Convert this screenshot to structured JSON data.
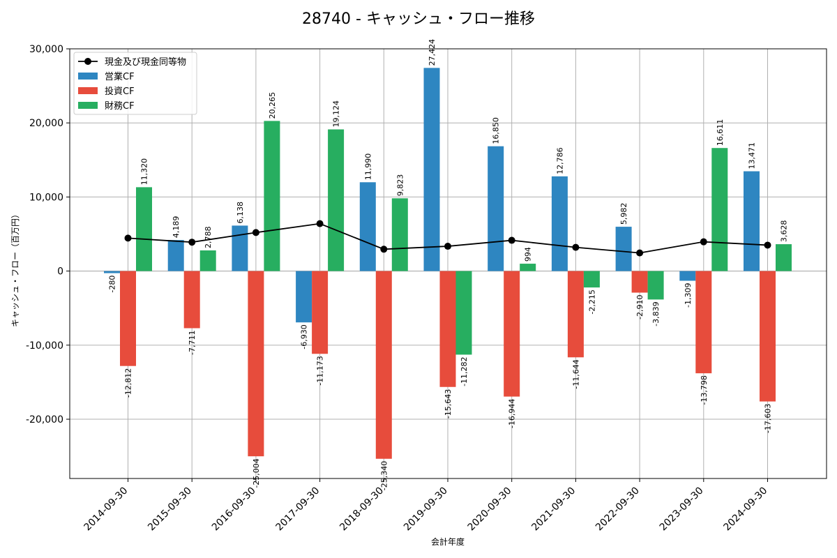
{
  "chart_data": {
    "type": "bar",
    "title": "28740 - キャッシュ・フロー推移",
    "xlabel": "会計年度",
    "ylabel": "キャッシュ・フロー（百万円）",
    "ylim": [
      -28000,
      30000
    ],
    "yticks": [
      -20000,
      -10000,
      0,
      10000,
      20000,
      30000
    ],
    "ytick_labels": [
      "-20,000",
      "-10,000",
      "0",
      "10,000",
      "20,000",
      "30,000"
    ],
    "grid": true,
    "legend_position": "top-left",
    "categories": [
      "2014-09-30",
      "2015-09-30",
      "2016-09-30",
      "2017-09-30",
      "2018-09-30",
      "2019-09-30",
      "2020-09-30",
      "2021-09-30",
      "2022-09-30",
      "2023-09-30",
      "2024-09-30"
    ],
    "series": [
      {
        "name": "営業CF",
        "kind": "bar",
        "color": "#2e86c1",
        "values": [
          -280,
          4189,
          6138,
          -6930,
          11990,
          27424,
          16850,
          12786,
          5982,
          -1309,
          13471
        ],
        "labels": [
          "-280",
          "4,189",
          "6,138",
          "-6,930",
          "11,990",
          "27,424",
          "16,850",
          "12,786",
          "5,982",
          "-1,309",
          "13,471"
        ]
      },
      {
        "name": "投資CF",
        "kind": "bar",
        "color": "#e74c3c",
        "values": [
          -12812,
          -7711,
          -25004,
          -11173,
          -25340,
          -15643,
          -16944,
          -11644,
          -2910,
          -13798,
          -17603
        ],
        "labels": [
          "-12,812",
          "-7,711",
          "-25,004",
          "-11,173",
          "-25,340",
          "-15,643",
          "-16,944",
          "-11,644",
          "-2,910",
          "-13,798",
          "-17,603"
        ]
      },
      {
        "name": "財務CF",
        "kind": "bar",
        "color": "#27ae60",
        "values": [
          11320,
          2788,
          20265,
          19124,
          9823,
          -11282,
          994,
          -2215,
          -3839,
          16611,
          3628
        ],
        "labels": [
          "11,320",
          "2,788",
          "20,265",
          "19,124",
          "9,823",
          "-11,282",
          "994",
          "-2,215",
          "-3,839",
          "16,611",
          "3,628"
        ]
      },
      {
        "name": "現金及び現金同等物",
        "kind": "line",
        "color": "#000000",
        "values": [
          4450,
          3900,
          5200,
          6400,
          2950,
          3350,
          4150,
          3200,
          2450,
          3950,
          3500
        ]
      }
    ]
  }
}
